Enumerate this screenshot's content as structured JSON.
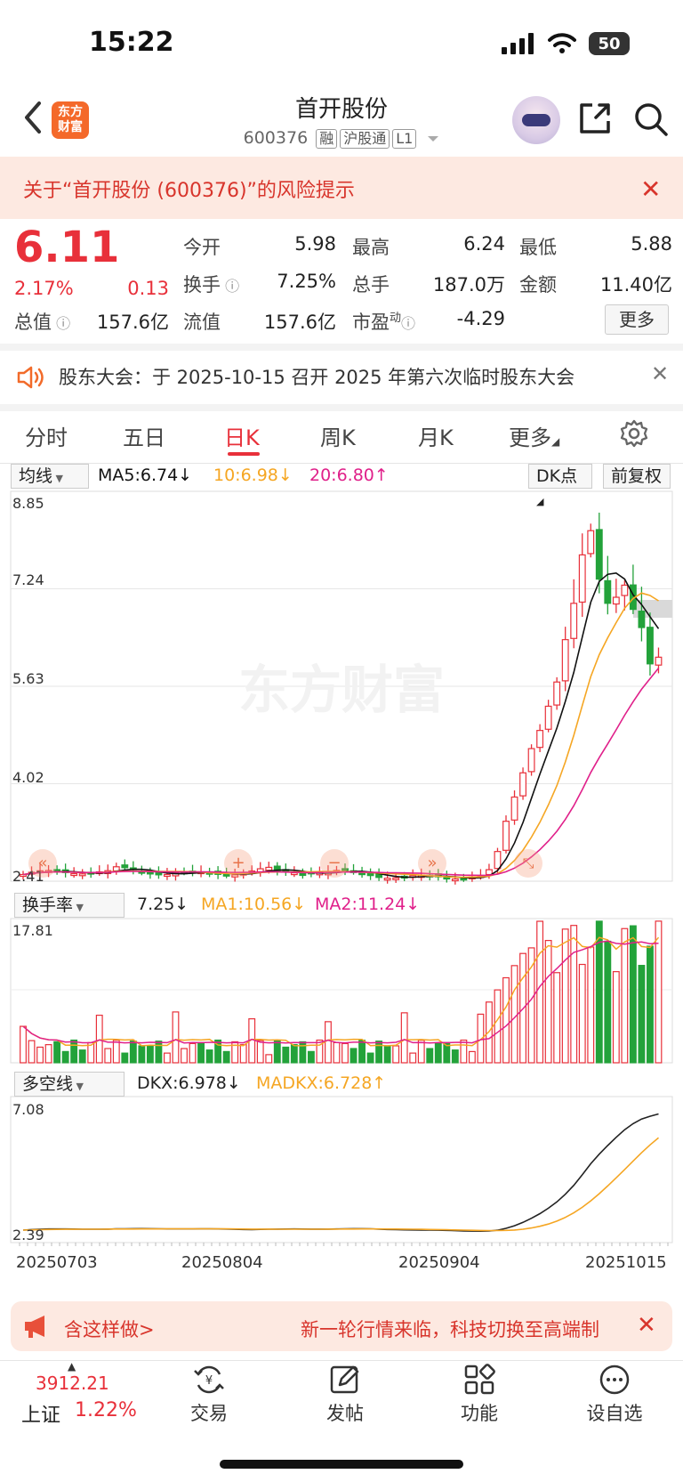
{
  "status_bar": {
    "time": "15:22",
    "battery": "50"
  },
  "header": {
    "logo_line1": "东方",
    "logo_line2": "财富",
    "title": "首开股份",
    "code": "600376",
    "tags": [
      "融",
      "沪股通",
      "L1"
    ]
  },
  "risk_banner": {
    "text": "关于“首开股份 (600376)”的风险提示"
  },
  "quote": {
    "price": "6.11",
    "change_pct": "2.17%",
    "change": "0.13",
    "open_label": "今开",
    "open": "5.98",
    "high_label": "最高",
    "high": "6.24",
    "low_label": "最低",
    "low": "5.88",
    "turnover_label": "换手",
    "turnover": "7.25%",
    "volume_label": "总手",
    "volume": "187.0万",
    "amount_label": "金额",
    "amount": "11.40亿",
    "total_cap_label": "总值",
    "total_cap": "157.6亿",
    "float_cap_label": "流值",
    "float_cap": "157.6亿",
    "pe_label": "市盈",
    "pe_sup": "动",
    "pe": "-4.29",
    "more_button": "更多"
  },
  "notice": {
    "text": "股东大会：于 2025-10-15 召开 2025 年第六次临时股东大会"
  },
  "tabs": [
    "分时",
    "五日",
    "日K",
    "周K",
    "月K",
    "更多"
  ],
  "active_tab": "日K",
  "kline": {
    "selector": "均线",
    "ma5": "MA5:6.74↓",
    "ma10": "10:6.98↓",
    "ma20": "20:6.80↑",
    "dk_button": "DK点",
    "adjust_button": "前复权",
    "y_labels": [
      "8.85",
      "7.24",
      "5.63",
      "4.02",
      "2.41"
    ],
    "watermark": "东方财富"
  },
  "turnover": {
    "selector": "换手率",
    "value": "7.25↓",
    "ma1": "MA1:10.56↓",
    "ma2": "MA2:11.24↓",
    "y_max": "17.81"
  },
  "dkx": {
    "selector": "多空线",
    "dkx": "DKX:6.978↓",
    "madkx": "MADKX:6.728↑",
    "y_max": "7.08",
    "y_min": "2.39"
  },
  "dates": [
    "20250703",
    "20250804",
    "20250904",
    "20251015"
  ],
  "colors": {
    "up": "#e8303a",
    "down": "#23a23a",
    "ma5": "#111111",
    "ma10": "#f5a623",
    "ma20": "#e0208a"
  },
  "chart_data": {
    "type": "candlestick",
    "y_axis_range": [
      2.41,
      8.85
    ],
    "x_dates_labeled": [
      "20250703",
      "20250804",
      "20250904",
      "20251015"
    ],
    "latest": {
      "open": 5.98,
      "high": 6.24,
      "low": 5.88,
      "close": 6.11
    },
    "close_trend_recent": [
      2.5,
      2.6,
      2.9,
      3.4,
      3.8,
      4.2,
      4.6,
      4.9,
      5.3,
      5.7,
      6.4,
      7.0,
      7.8,
      8.2,
      7.4,
      7.0,
      7.1,
      7.3,
      6.9,
      6.6,
      6.0,
      6.11
    ]
  },
  "ticker": {
    "left_text": "含这样做>",
    "right_text": "新一轮行情来临，科技切换至高端制"
  },
  "bottom_bar": {
    "index_value": "3912.21",
    "index_name": "上证",
    "index_pct": "1.22%",
    "nav": [
      "交易",
      "发帖",
      "功能",
      "设自选"
    ]
  }
}
